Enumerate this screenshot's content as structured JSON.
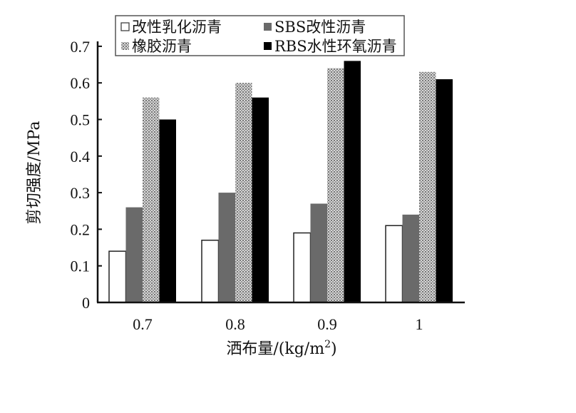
{
  "chart_data": {
    "type": "bar",
    "title": "",
    "xlabel": "洒布量/(kg/m",
    "xlabel_sup": "2",
    "xlabel_end": ")",
    "ylabel": "剪切强度/MPa",
    "ylim": [
      0,
      0.7
    ],
    "yticks": [
      "0",
      "0.1",
      "0.2",
      "0.3",
      "0.4",
      "0.5",
      "0.6",
      "0.7"
    ],
    "categories": [
      "0.7",
      "0.8",
      "0.9",
      "1"
    ],
    "legend_position": "top",
    "grid": false,
    "series": [
      {
        "name": "改性乳化沥青",
        "color": "#ffffff",
        "fill": "white-outline",
        "values": [
          0.14,
          0.17,
          0.19,
          0.21
        ]
      },
      {
        "name": "SBS改性沥青",
        "color": "#6a6a6a",
        "fill": "solid",
        "values": [
          0.26,
          0.3,
          0.27,
          0.24
        ]
      },
      {
        "name": "橡胶沥青",
        "color": "#b8b8b8",
        "fill": "dotted-pattern",
        "values": [
          0.56,
          0.6,
          0.64,
          0.63
        ]
      },
      {
        "name": "RBS水性环氧沥青",
        "color": "#000000",
        "fill": "solid",
        "values": [
          0.5,
          0.56,
          0.66,
          0.61
        ]
      }
    ]
  }
}
